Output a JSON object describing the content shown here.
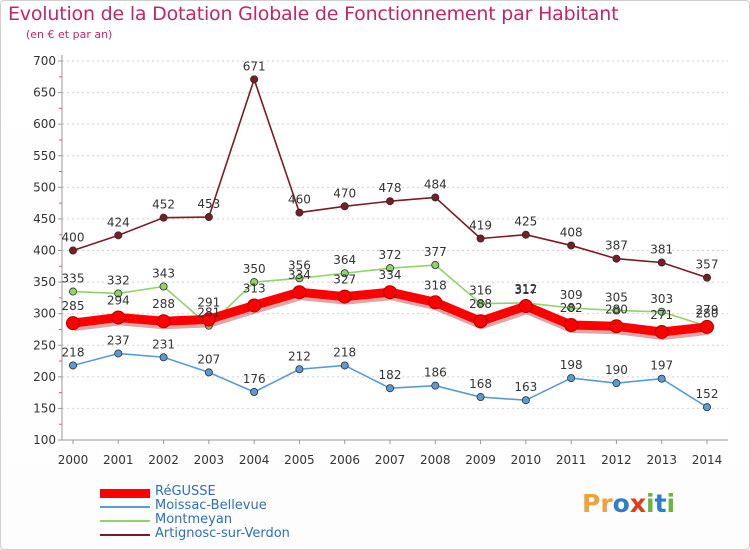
{
  "header": {
    "title": "Evolution de la Dotation Globale de Fonctionnement par Habitant",
    "subtitle": "(en € et par an)"
  },
  "logo": {
    "text": "Proxiti",
    "letters": [
      "P",
      "r",
      "o",
      "x",
      "i",
      "t",
      "i"
    ],
    "colors": [
      "#f0a23a",
      "#f0a23a",
      "#2e7fc8",
      "#e43a1c",
      "#6db33f",
      "#2e7fc8",
      "#6db33f"
    ]
  },
  "chart_data": {
    "type": "line",
    "x": [
      "2000",
      "2001",
      "2002",
      "2003",
      "2004",
      "2005",
      "2006",
      "2007",
      "2008",
      "2009",
      "2010",
      "2011",
      "2012",
      "2013",
      "2014"
    ],
    "ylim": [
      100,
      700
    ],
    "yticks": [
      "100",
      "150",
      "200",
      "250",
      "300",
      "350",
      "400",
      "450",
      "500",
      "550",
      "600",
      "650",
      "700"
    ],
    "grid": "horizontal dotted",
    "legend_position": "bottom-left",
    "series": [
      {
        "name": "RéGUSSE",
        "color": "#ff0000",
        "values": [
          285,
          294,
          288,
          291,
          313,
          334,
          327,
          334,
          318,
          288,
          312,
          282,
          280,
          271,
          279
        ],
        "labels": [
          "285",
          "294",
          "288",
          "291",
          "313",
          "334",
          "327",
          "334",
          "318",
          "288",
          "312",
          "282",
          "280",
          "271",
          "279"
        ]
      },
      {
        "name": "Moissac-Bellevue",
        "color": "#5b9bd5",
        "values": [
          218,
          237,
          231,
          207,
          176,
          212,
          218,
          182,
          186,
          168,
          163,
          198,
          190,
          197,
          152
        ],
        "labels": [
          "218",
          "237",
          "231",
          "207",
          "176",
          "212",
          "218",
          "182",
          "186",
          "168",
          "163",
          "198",
          "190",
          "197",
          "152"
        ]
      },
      {
        "name": "Montmeyan",
        "color": "#8fd36a",
        "values": [
          335,
          332,
          343,
          281,
          350,
          356,
          364,
          372,
          377,
          316,
          317,
          309,
          305,
          303,
          280
        ],
        "labels": [
          "335",
          "332",
          "343",
          "281",
          "350",
          "356",
          "364",
          "372",
          "377",
          "316",
          "317",
          "309",
          "305",
          "303",
          "280"
        ]
      },
      {
        "name": "Artignosc-sur-Verdon",
        "color": "#7b1c24",
        "values": [
          400,
          424,
          452,
          453,
          671,
          460,
          470,
          478,
          484,
          419,
          425,
          408,
          387,
          381,
          357
        ],
        "labels": [
          "400",
          "424",
          "452",
          "453",
          "671",
          "460",
          "470",
          "478",
          "484",
          "419",
          "425",
          "408",
          "387",
          "381",
          "357"
        ]
      }
    ]
  }
}
